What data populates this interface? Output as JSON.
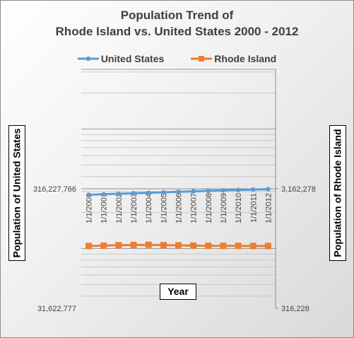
{
  "chart_data": {
    "type": "line",
    "title": [
      "Population Trend of",
      "Rhode Island vs. United States 2000 - 2012"
    ],
    "xlabel": "Year",
    "ylabel_left": "Population of United States",
    "ylabel_right": "Population of Rhode Island",
    "categories": [
      "1/1/2000",
      "1/1/2001",
      "1/1/2002",
      "1/1/2003",
      "1/1/2004",
      "1/1/2005",
      "1/1/2006",
      "1/1/2007",
      "1/1/2008",
      "1/1/2009",
      "1/1/2010",
      "1/1/2011",
      "1/1/2012"
    ],
    "y_left": {
      "scale": "log",
      "range": [
        31622777,
        3162277660
      ],
      "tick_labels": [
        "316,227,766",
        "31,622,777"
      ],
      "tick_values": [
        316227766,
        31622777
      ]
    },
    "y_right": {
      "scale": "log",
      "range": [
        316228,
        31622777
      ],
      "tick_labels": [
        "3,162,278",
        "316,228"
      ],
      "tick_values": [
        3162278,
        316228
      ]
    },
    "series": [
      {
        "name": "United States",
        "axis": "left",
        "color": "#5b9bd5",
        "marker": "circle",
        "values": [
          282162411,
          284968955,
          287625193,
          290107933,
          292805298,
          295516599,
          298379912,
          301231207,
          304093966,
          306771529,
          309338421,
          311644280,
          313993272
        ]
      },
      {
        "name": "Rhode Island",
        "axis": "right",
        "color": "#ed7d31",
        "marker": "square",
        "values": [
          1050268,
          1057142,
          1065995,
          1071504,
          1074579,
          1067916,
          1063096,
          1057315,
          1055003,
          1053646,
          1052886,
          1050292,
          1050113
        ]
      }
    ],
    "grid": true,
    "legend": "top"
  }
}
